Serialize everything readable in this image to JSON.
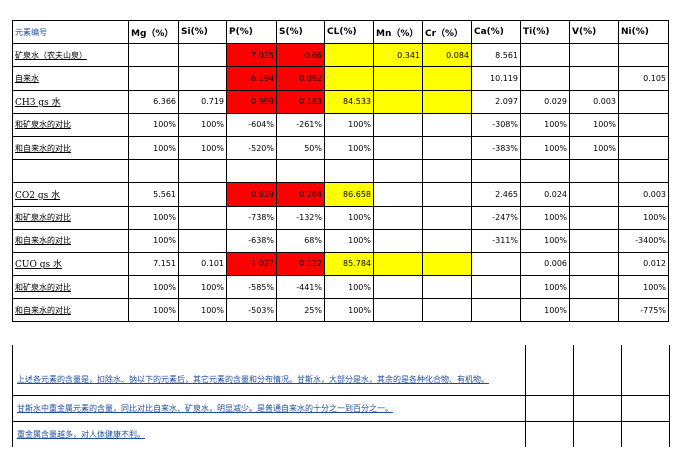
{
  "headers": [
    "元素编号",
    "Mg（%）",
    "Si(%)",
    "P(%)",
    "S(%)",
    "CL(%)",
    "Mn（%）",
    "Cr（%）",
    "Ca(%)",
    "Ti(%)",
    "V(%)",
    "Ni(%)"
  ],
  "rows": [
    {
      "label": "矿泉水（农夫山泉）",
      "cells": [
        "",
        "",
        "7.035",
        "0.66",
        "",
        "0.341",
        "0.084",
        "8.561",
        "",
        "",
        ""
      ]
    },
    {
      "label": "自来水",
      "cells": [
        "",
        "",
        "6.194",
        "0.092",
        "",
        "",
        "",
        "10.119",
        "",
        "",
        "0.105"
      ]
    },
    {
      "label": "CH3 gs 水",
      "cells": [
        "6.366",
        "0.719",
        "0.999",
        "0.183",
        "84.533",
        "",
        "",
        "2.097",
        "0.029",
        "0.003",
        ""
      ]
    },
    {
      "label": "和矿泉水的对比",
      "cells": [
        "100%",
        "100%",
        "-604%",
        "-261%",
        "100%",
        "",
        "",
        "-308%",
        "100%",
        "100%",
        ""
      ]
    },
    {
      "label": "和自来水的对比",
      "cells": [
        "100%",
        "100%",
        "-520%",
        "50%",
        "100%",
        "",
        "",
        "-383%",
        "100%",
        "100%",
        ""
      ]
    },
    {
      "label": "",
      "cells": [
        "",
        "",
        "",
        "",
        "",
        "",
        "",
        "",
        "",
        "",
        ""
      ]
    },
    {
      "label": "CO2 gs 水",
      "cells": [
        "5.561",
        "",
        "0.839",
        "0.284",
        "86.658",
        "",
        "",
        "2.465",
        "0.024",
        "",
        "0.003"
      ]
    },
    {
      "label": "和矿泉水的对比",
      "cells": [
        "100%",
        "",
        "-738%",
        "-132%",
        "100%",
        "",
        "",
        "-247%",
        "100%",
        "",
        "100%"
      ]
    },
    {
      "label": "和自来水的对比",
      "cells": [
        "100%",
        "",
        "-638%",
        "68%",
        "100%",
        "",
        "",
        "-311%",
        "100%",
        "",
        "-3400%"
      ]
    },
    {
      "label": "CUO gs 水",
      "cells": [
        "7.151",
        "0.101",
        "1.027",
        "0.122",
        "85.784",
        "",
        "",
        "",
        "0.006",
        "",
        "0.012"
      ]
    },
    {
      "label": "和矿泉水的对比",
      "cells": [
        "100%",
        "100%",
        "-585%",
        "-441%",
        "100%",
        "",
        "",
        "",
        "100%",
        "",
        "100%"
      ]
    },
    {
      "label": "和自来水的对比",
      "cells": [
        "100%",
        "100%",
        "-503%",
        "25%",
        "100%",
        "",
        "",
        "",
        "100%",
        "",
        "-775%"
      ]
    }
  ],
  "notes": [
    "上述各元素的含量是，扣除水、钠以下的元素后，其它元素的含量和分布情况。甘斯水，大部分是水，其余的是各种化合物、有机物。",
    "甘斯水中重金属元素的含量，同比对比自来水、矿泉水，明显减少。是普通自来水的十分之一到百分之一。",
    "重金属含量越多，对人体健康不利。"
  ],
  "colors": {
    "red": "#ff0000",
    "yellow": "#ffff00",
    "link": "#1f4e9c"
  }
}
